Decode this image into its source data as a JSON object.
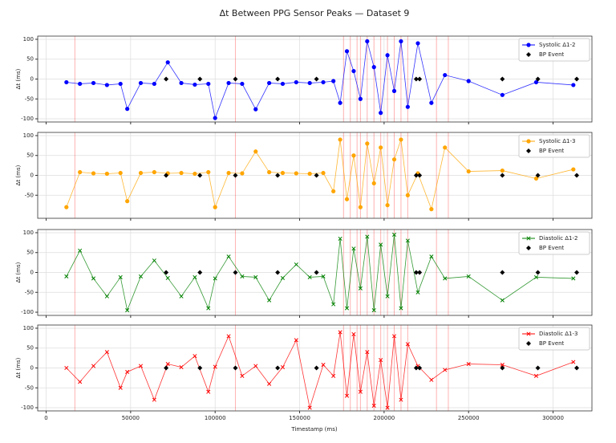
{
  "title": "Δt Between PPG Sensor Peaks — Dataset 9",
  "xlabel": "Timestamp (ms)",
  "chart_data": [
    {
      "type": "line",
      "ylabel": "Δt (ms)",
      "xlim": [
        -5000,
        323000
      ],
      "ylim": [
        -108,
        108
      ],
      "xticks": [
        0,
        50000,
        100000,
        150000,
        200000,
        250000,
        300000
      ],
      "yticks": [
        -100,
        -50,
        0,
        50,
        100
      ],
      "grid": true,
      "legend": "upper right",
      "event_lines": [
        17000,
        112000,
        176000,
        180000,
        184000,
        186000,
        190000,
        194000,
        198000,
        202000,
        206000,
        210000,
        214000,
        231000,
        238000
      ],
      "series": [
        {
          "name": "Systolic Δ1-2",
          "color": "#0000ff",
          "marker": "o",
          "x": [
            12000,
            20000,
            28000,
            36000,
            44000,
            48000,
            56000,
            64000,
            72000,
            80000,
            88000,
            96000,
            100000,
            108000,
            116000,
            124000,
            132000,
            140000,
            148000,
            156000,
            164000,
            170000,
            174000,
            178000,
            182000,
            186000,
            190000,
            194000,
            198000,
            202000,
            206000,
            210000,
            214000,
            220000,
            228000,
            236000,
            250000,
            270000,
            290000,
            312000
          ],
          "values": [
            -8,
            -12,
            -10,
            -15,
            -12,
            -75,
            -10,
            -12,
            42,
            -10,
            -14,
            -12,
            -98,
            -10,
            -12,
            -76,
            -10,
            -12,
            -8,
            -10,
            -8,
            -5,
            -60,
            70,
            20,
            -50,
            95,
            30,
            -85,
            60,
            -30,
            95,
            -70,
            90,
            -60,
            10,
            -5,
            -40,
            -8,
            -15
          ]
        },
        {
          "name": "BP Event",
          "color": "#000000",
          "marker": "D",
          "x": [
            71000,
            91000,
            112000,
            137000,
            160000,
            219000,
            221000,
            270000,
            291000,
            314000
          ],
          "values": [
            0,
            0,
            0,
            0,
            0,
            0,
            0,
            0,
            0,
            0
          ]
        }
      ]
    },
    {
      "type": "line",
      "ylabel": "Δt (ms)",
      "xlim": [
        -5000,
        323000
      ],
      "ylim": [
        -108,
        108
      ],
      "xticks": [
        0,
        50000,
        100000,
        150000,
        200000,
        250000,
        300000
      ],
      "yticks": [
        -50,
        0,
        50,
        100
      ],
      "grid": true,
      "legend": "upper right",
      "event_lines": [
        17000,
        112000,
        176000,
        180000,
        184000,
        186000,
        190000,
        194000,
        198000,
        202000,
        206000,
        210000,
        214000,
        231000,
        238000
      ],
      "series": [
        {
          "name": "Systolic Δ1-3",
          "color": "#ffa500",
          "marker": "o",
          "x": [
            12000,
            20000,
            28000,
            36000,
            44000,
            48000,
            56000,
            64000,
            72000,
            80000,
            88000,
            96000,
            100000,
            108000,
            116000,
            124000,
            132000,
            140000,
            148000,
            156000,
            164000,
            170000,
            174000,
            178000,
            182000,
            186000,
            190000,
            194000,
            198000,
            202000,
            206000,
            210000,
            214000,
            220000,
            228000,
            236000,
            250000,
            270000,
            290000,
            312000
          ],
          "values": [
            -80,
            8,
            5,
            4,
            6,
            -65,
            6,
            8,
            5,
            6,
            4,
            8,
            -80,
            6,
            5,
            60,
            8,
            6,
            5,
            4,
            6,
            -40,
            90,
            -60,
            50,
            -80,
            80,
            -20,
            70,
            -75,
            40,
            90,
            -50,
            5,
            -85,
            70,
            10,
            12,
            -8,
            15
          ]
        },
        {
          "name": "BP Event",
          "color": "#000000",
          "marker": "D",
          "x": [
            71000,
            91000,
            112000,
            137000,
            160000,
            219000,
            221000,
            270000,
            291000,
            314000
          ],
          "values": [
            0,
            0,
            0,
            0,
            0,
            0,
            0,
            0,
            0,
            0
          ]
        }
      ]
    },
    {
      "type": "line",
      "ylabel": "Δt (ms)",
      "xlim": [
        -5000,
        323000
      ],
      "ylim": [
        -108,
        108
      ],
      "xticks": [
        0,
        50000,
        100000,
        150000,
        200000,
        250000,
        300000
      ],
      "yticks": [
        -100,
        -50,
        0,
        50,
        100
      ],
      "grid": true,
      "legend": "upper right",
      "event_lines": [
        17000,
        112000,
        176000,
        180000,
        184000,
        186000,
        190000,
        194000,
        198000,
        202000,
        206000,
        210000,
        214000,
        231000,
        238000
      ],
      "series": [
        {
          "name": "Diastolic Δ1-2",
          "color": "#008000",
          "marker": "x",
          "x": [
            12000,
            20000,
            28000,
            36000,
            44000,
            48000,
            56000,
            64000,
            72000,
            80000,
            88000,
            96000,
            100000,
            108000,
            116000,
            124000,
            132000,
            140000,
            148000,
            156000,
            164000,
            170000,
            174000,
            178000,
            182000,
            186000,
            190000,
            194000,
            198000,
            202000,
            206000,
            210000,
            214000,
            220000,
            228000,
            236000,
            250000,
            270000,
            290000,
            312000
          ],
          "values": [
            -10,
            55,
            -15,
            -60,
            -12,
            -95,
            -10,
            30,
            -14,
            -60,
            -12,
            -90,
            -15,
            40,
            -10,
            -12,
            -70,
            -14,
            20,
            -12,
            -10,
            -80,
            85,
            -90,
            60,
            -40,
            90,
            -95,
            70,
            -60,
            95,
            -90,
            80,
            -50,
            40,
            -15,
            -10,
            -70,
            -12,
            -15
          ]
        },
        {
          "name": "BP Event",
          "color": "#000000",
          "marker": "D",
          "x": [
            71000,
            91000,
            112000,
            137000,
            160000,
            219000,
            221000,
            270000,
            291000,
            314000
          ],
          "values": [
            0,
            0,
            0,
            0,
            0,
            0,
            0,
            0,
            0,
            0
          ]
        }
      ]
    },
    {
      "type": "line",
      "ylabel": "Δt (ms)",
      "xlim": [
        -5000,
        323000
      ],
      "ylim": [
        -108,
        108
      ],
      "xticks": [
        0,
        50000,
        100000,
        150000,
        200000,
        250000,
        300000
      ],
      "yticks": [
        -100,
        -50,
        0,
        50,
        100
      ],
      "grid": true,
      "legend": "upper right",
      "event_lines": [
        17000,
        112000,
        176000,
        180000,
        184000,
        186000,
        190000,
        194000,
        198000,
        202000,
        206000,
        210000,
        214000,
        231000,
        238000
      ],
      "series": [
        {
          "name": "Diastolic Δ1-3",
          "color": "#ff0000",
          "marker": "x",
          "x": [
            12000,
            20000,
            28000,
            36000,
            44000,
            48000,
            56000,
            64000,
            72000,
            80000,
            88000,
            96000,
            100000,
            108000,
            116000,
            124000,
            132000,
            140000,
            148000,
            156000,
            164000,
            170000,
            174000,
            178000,
            182000,
            186000,
            190000,
            194000,
            198000,
            202000,
            206000,
            210000,
            214000,
            220000,
            228000,
            236000,
            250000,
            270000,
            290000,
            312000
          ],
          "values": [
            0,
            -35,
            5,
            40,
            -50,
            -10,
            5,
            -80,
            10,
            2,
            30,
            -60,
            3,
            80,
            -20,
            5,
            -40,
            2,
            70,
            -100,
            8,
            -20,
            90,
            -70,
            85,
            -60,
            40,
            -95,
            20,
            -100,
            80,
            -80,
            60,
            5,
            -30,
            -5,
            10,
            8,
            -20,
            15
          ]
        },
        {
          "name": "BP Event",
          "color": "#000000",
          "marker": "D",
          "x": [
            71000,
            91000,
            112000,
            137000,
            160000,
            219000,
            221000,
            270000,
            291000,
            314000
          ],
          "values": [
            0,
            0,
            0,
            0,
            0,
            0,
            0,
            0,
            0,
            0
          ]
        }
      ]
    }
  ]
}
